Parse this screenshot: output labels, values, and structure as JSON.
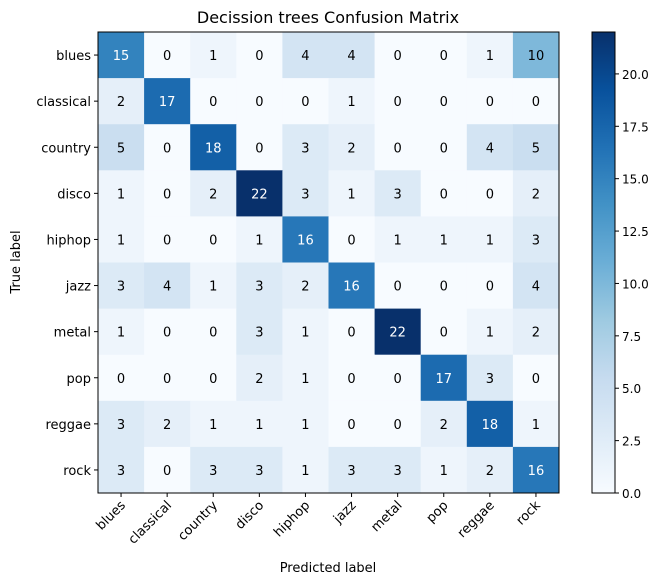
{
  "chart_data": {
    "type": "heatmap",
    "title": "Decission trees Confusion Matrix",
    "xlabel": "Predicted label",
    "ylabel": "True label",
    "x_categories": [
      "blues",
      "classical",
      "country",
      "disco",
      "hiphop",
      "jazz",
      "metal",
      "pop",
      "reggae",
      "rock"
    ],
    "y_categories": [
      "blues",
      "classical",
      "country",
      "disco",
      "hiphop",
      "jazz",
      "metal",
      "pop",
      "reggae",
      "rock"
    ],
    "values": [
      [
        15,
        0,
        1,
        0,
        4,
        4,
        0,
        0,
        1,
        10
      ],
      [
        2,
        17,
        0,
        0,
        0,
        1,
        0,
        0,
        0,
        0
      ],
      [
        5,
        0,
        18,
        0,
        3,
        2,
        0,
        0,
        4,
        5
      ],
      [
        1,
        0,
        2,
        22,
        3,
        1,
        3,
        0,
        0,
        2
      ],
      [
        1,
        0,
        0,
        1,
        16,
        0,
        1,
        1,
        1,
        3
      ],
      [
        3,
        4,
        1,
        3,
        2,
        16,
        0,
        0,
        0,
        4
      ],
      [
        1,
        0,
        0,
        3,
        1,
        0,
        22,
        0,
        1,
        2
      ],
      [
        0,
        0,
        0,
        2,
        1,
        0,
        0,
        17,
        3,
        0
      ],
      [
        3,
        2,
        1,
        1,
        1,
        0,
        0,
        2,
        18,
        1
      ],
      [
        3,
        0,
        3,
        3,
        1,
        3,
        3,
        1,
        2,
        16
      ]
    ],
    "colormap": "Blues",
    "color_range": [
      0,
      22
    ],
    "colorbar_ticks": [
      "0.0",
      "2.5",
      "5.0",
      "7.5",
      "10.0",
      "12.5",
      "15.0",
      "17.5",
      "20.0"
    ],
    "colorbar_tick_values": [
      0,
      2.5,
      5,
      7.5,
      10,
      12.5,
      15,
      17.5,
      20
    ],
    "grid": false
  }
}
